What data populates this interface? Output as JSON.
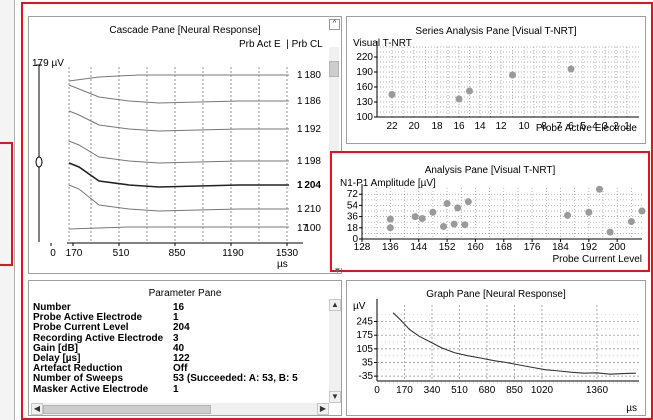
{
  "cascade": {
    "title": "Cascade Pane [Neural Response]",
    "col_headers": "Prb Act E  | Prb CL",
    "scale_label": "179 µV",
    "unit": "µs",
    "x_ticks": [
      "0",
      "170",
      "510",
      "850",
      "1190",
      "1530"
    ],
    "traces": [
      {
        "electrode": "1",
        "level": "180",
        "bold": false
      },
      {
        "electrode": "1",
        "level": "186",
        "bold": false
      },
      {
        "electrode": "1",
        "level": "192",
        "bold": false
      },
      {
        "electrode": "1",
        "level": "198",
        "bold": false
      },
      {
        "electrode": "1",
        "level": "204",
        "bold": true
      },
      {
        "electrode": "1",
        "level": "210",
        "bold": false
      },
      {
        "electrode": "17",
        "level": "100",
        "bold": false
      }
    ]
  },
  "series": {
    "title": "Series Analysis Pane [Visual T-NRT]",
    "ylabel": "Visual T-NRT",
    "xlabel": "Probe Active Electrode"
  },
  "analysis": {
    "title": "Analysis Pane [Visual T-NRT]",
    "ylabel": "N1-P1 Amplitude [µV]",
    "xlabel": "Probe Current Level"
  },
  "graph": {
    "title": "Graph Pane [Neural Response]",
    "ylabel": "µV",
    "xlabel": "µs"
  },
  "parameter": {
    "title": "Parameter Pane",
    "rows": [
      {
        "key": "Number",
        "value": "16"
      },
      {
        "key": "Probe Active Electrode",
        "value": "1"
      },
      {
        "key": "Probe Current Level",
        "value": "204"
      },
      {
        "key": "Recording Active Electrode",
        "value": "3"
      },
      {
        "key": "Gain [dB]",
        "value": "40"
      },
      {
        "key": "Delay [µs]",
        "value": "122"
      },
      {
        "key": "Artefact Reduction",
        "value": "Off"
      },
      {
        "key": "Number of Sweeps",
        "value": "53 (Succeeded: A: 53, B: 5"
      },
      {
        "key": "Masker Active Electrode",
        "value": "1"
      }
    ]
  },
  "chart_data": [
    {
      "type": "scatter",
      "title": "Series Analysis Pane [Visual T-NRT]",
      "ylabel": "Visual T-NRT",
      "xlabel": "Probe Active Electrode",
      "x_ticks": [
        "22",
        "20",
        "18",
        "16",
        "14",
        "12",
        "10",
        "8",
        "7",
        "6",
        "5",
        "4",
        "3",
        "2",
        "1"
      ],
      "y_ticks": [
        100,
        130,
        160,
        190,
        220
      ],
      "ylim": [
        100,
        240
      ],
      "x_reversed": true,
      "points": [
        {
          "x": 22,
          "y": 145
        },
        {
          "x": 16,
          "y": 136
        },
        {
          "x": 15,
          "y": 152
        },
        {
          "x": 11,
          "y": 184
        },
        {
          "x": 6,
          "y": 196
        }
      ]
    },
    {
      "type": "scatter",
      "title": "Analysis Pane [Visual T-NRT]",
      "ylabel": "N1-P1 Amplitude [µV]",
      "xlabel": "Probe Current Level",
      "x_ticks": [
        128,
        136,
        144,
        152,
        160,
        168,
        176,
        184,
        192,
        200
      ],
      "y_ticks": [
        0,
        18,
        36,
        54,
        72
      ],
      "xlim": [
        128,
        207
      ],
      "ylim": [
        0,
        82
      ],
      "points": [
        {
          "x": 136,
          "y": 18
        },
        {
          "x": 136,
          "y": 32
        },
        {
          "x": 143,
          "y": 36
        },
        {
          "x": 145,
          "y": 33
        },
        {
          "x": 148,
          "y": 43
        },
        {
          "x": 152,
          "y": 57
        },
        {
          "x": 151,
          "y": 20
        },
        {
          "x": 154,
          "y": 24
        },
        {
          "x": 155,
          "y": 50
        },
        {
          "x": 157,
          "y": 23
        },
        {
          "x": 158,
          "y": 60
        },
        {
          "x": 186,
          "y": 38
        },
        {
          "x": 192,
          "y": 43
        },
        {
          "x": 195,
          "y": 80
        },
        {
          "x": 198,
          "y": 11
        },
        {
          "x": 204,
          "y": 28
        },
        {
          "x": 207,
          "y": 45
        }
      ]
    },
    {
      "type": "line",
      "title": "Graph Pane [Neural Response]",
      "ylabel": "µV",
      "xlabel": "µs",
      "x_ticks": [
        0,
        170,
        340,
        510,
        680,
        850,
        1020,
        1360
      ],
      "y_ticks": [
        -35,
        35,
        105,
        175,
        245
      ],
      "xlim": [
        0,
        1620
      ],
      "ylim": [
        -60,
        330
      ],
      "series": [
        {
          "values": [
            [
              100,
              290
            ],
            [
              150,
              250
            ],
            [
              200,
              205
            ],
            [
              260,
              170
            ],
            [
              330,
              140
            ],
            [
              400,
              110
            ],
            [
              480,
              85
            ],
            [
              560,
              70
            ],
            [
              640,
              58
            ],
            [
              720,
              45
            ],
            [
              800,
              35
            ],
            [
              880,
              22
            ],
            [
              960,
              10
            ],
            [
              1040,
              -2
            ],
            [
              1120,
              -8
            ],
            [
              1200,
              -15
            ],
            [
              1280,
              -20
            ],
            [
              1360,
              -18
            ],
            [
              1440,
              -25
            ],
            [
              1520,
              -22
            ],
            [
              1600,
              -20
            ]
          ]
        }
      ]
    }
  ]
}
